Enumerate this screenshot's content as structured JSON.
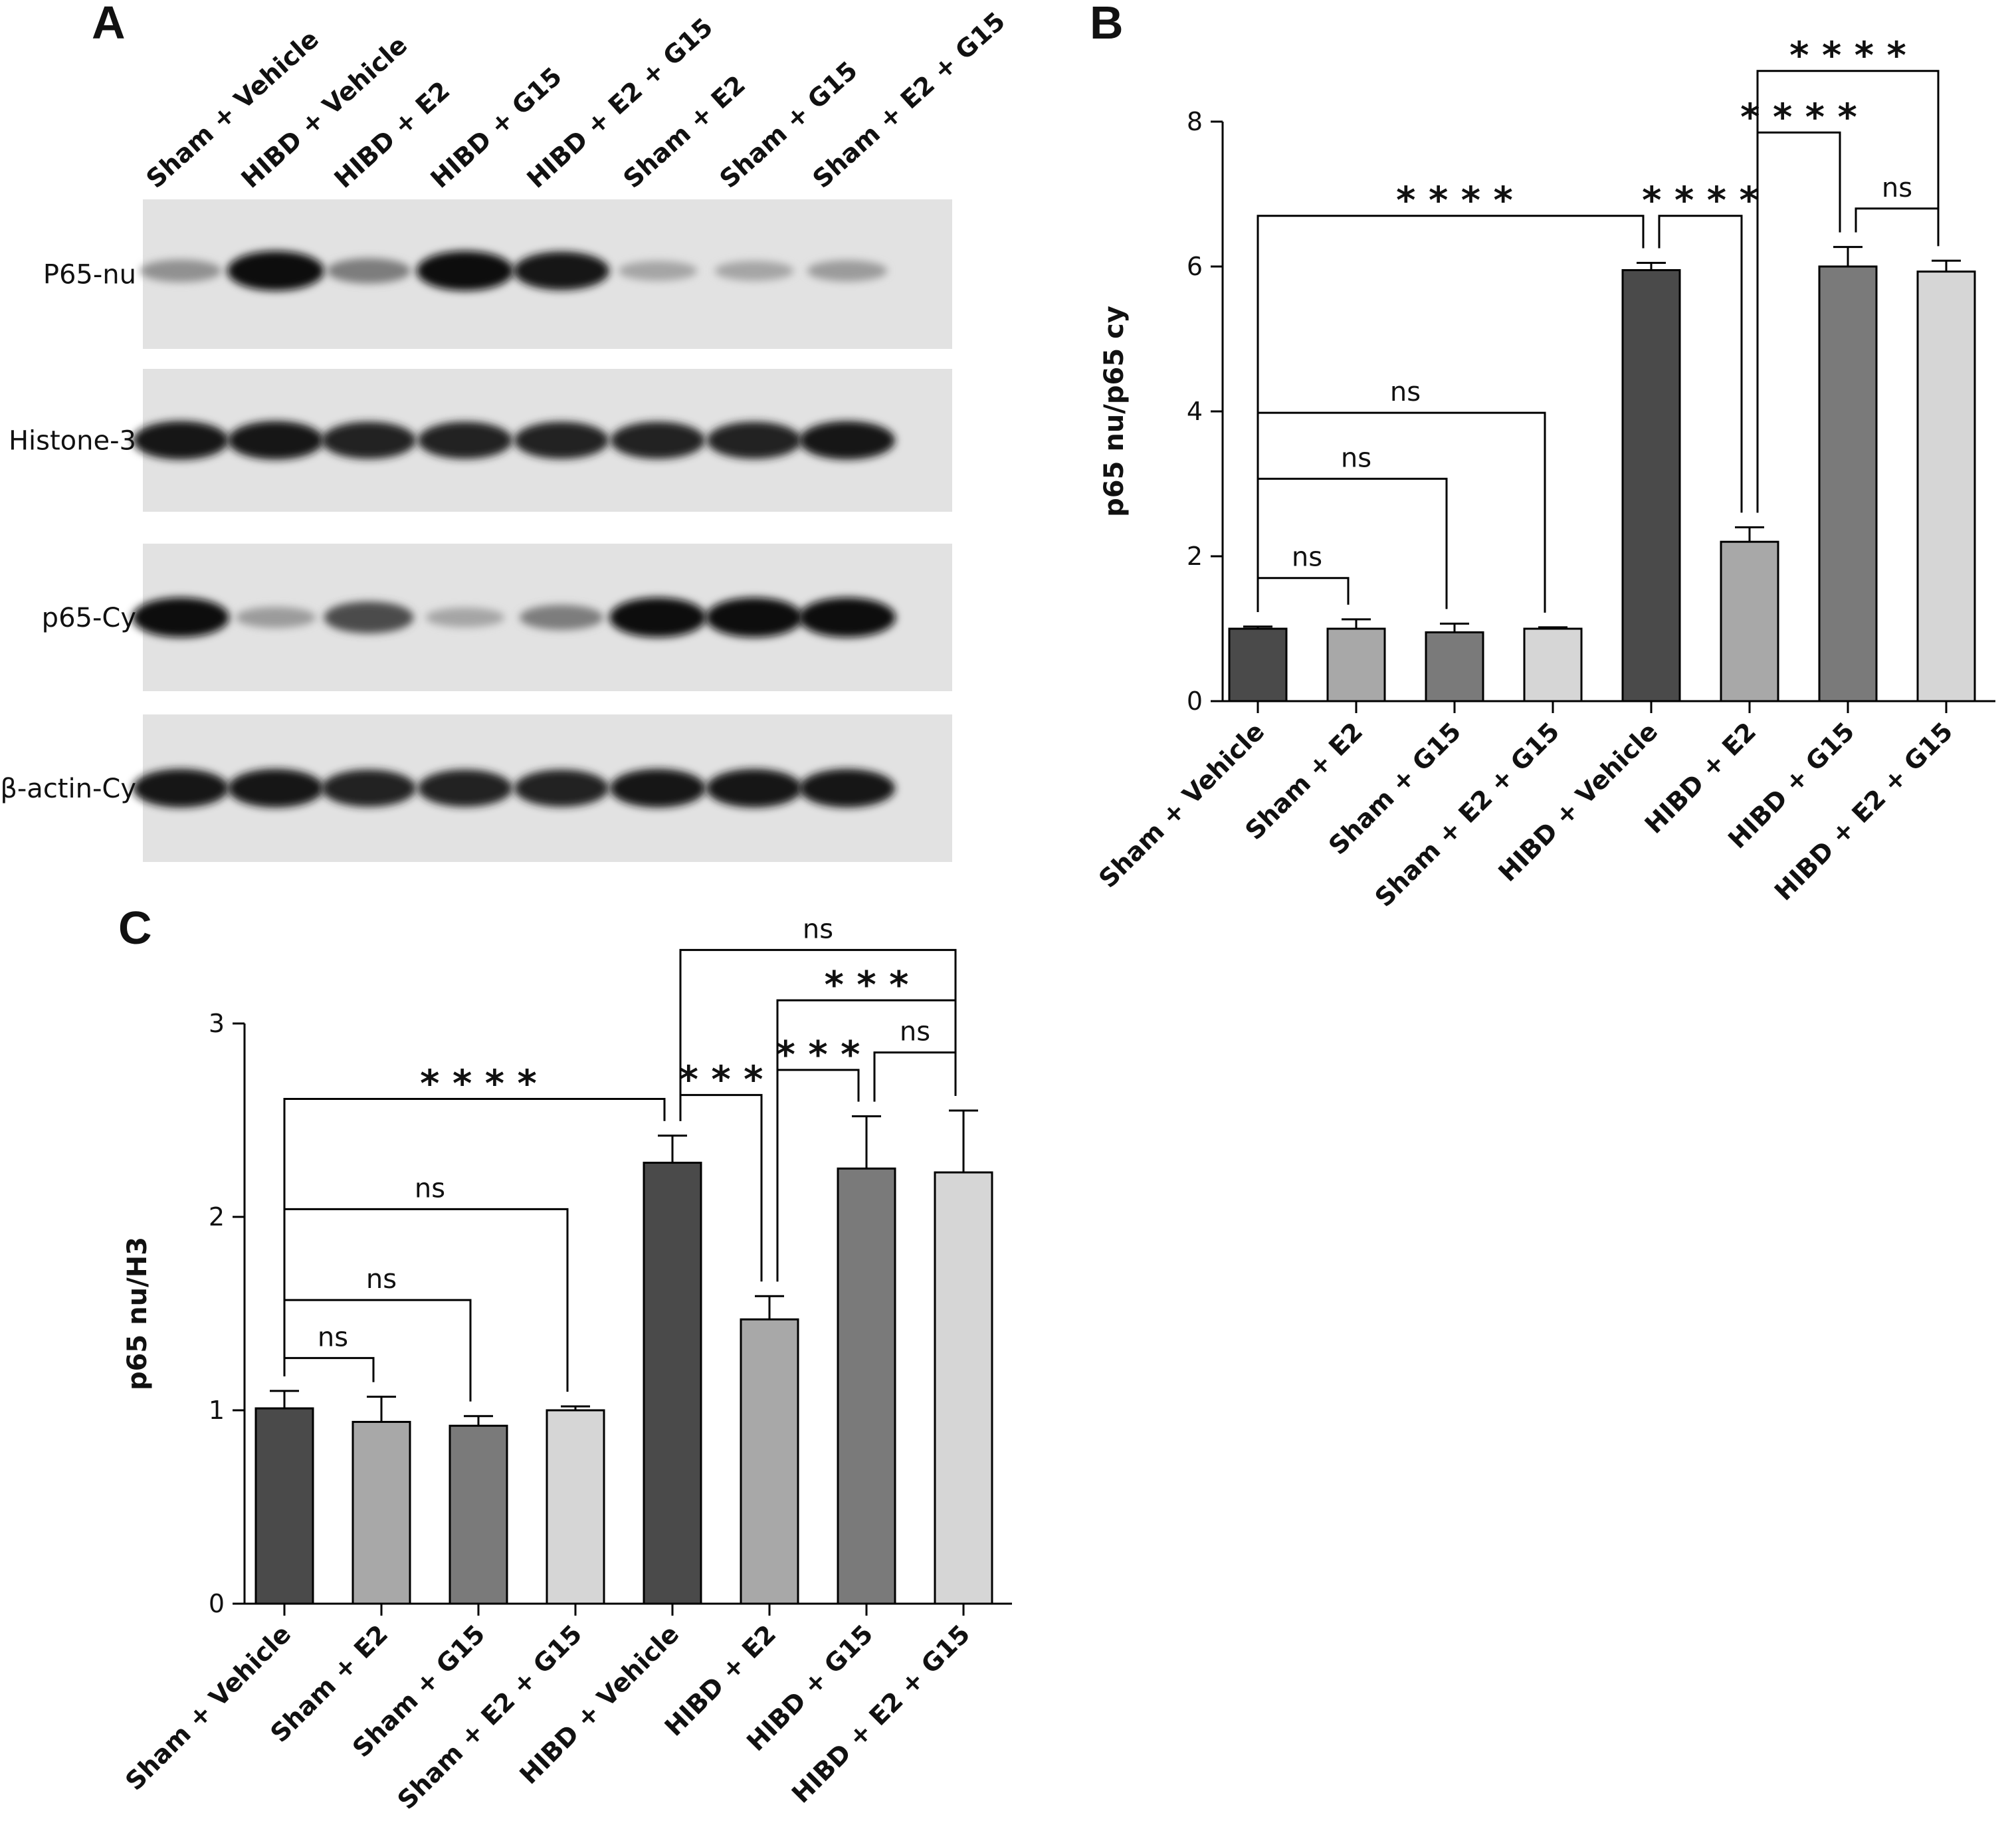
{
  "panels": {
    "a_label": "A",
    "b_label": "B",
    "c_label": "C"
  },
  "blot": {
    "lanes": [
      "Sham + Vehicle",
      "HIBD + Vehicle",
      "HIBD + E2",
      "HIBD + G15",
      "HIBD + E2 + G15",
      "Sham + E2",
      "Sham + G15",
      "Sham + E2 + G15"
    ],
    "rows": [
      {
        "label": "P65-nu",
        "intensity": [
          0.35,
          1.0,
          0.45,
          1.0,
          0.95,
          0.25,
          0.25,
          0.3
        ]
      },
      {
        "label": "Histone-3",
        "intensity": [
          0.95,
          0.95,
          0.9,
          0.9,
          0.9,
          0.9,
          0.9,
          0.95
        ]
      },
      {
        "label": "p65-Cy",
        "intensity": [
          1.0,
          0.3,
          0.7,
          0.25,
          0.45,
          1.0,
          1.0,
          1.0
        ]
      },
      {
        "label": "β-actin-Cy",
        "intensity": [
          0.95,
          0.95,
          0.9,
          0.9,
          0.9,
          0.95,
          0.95,
          0.95
        ]
      }
    ]
  },
  "chart_data": [
    {
      "panel": "B",
      "type": "bar",
      "categories": [
        "Sham + Vehicle",
        "Sham + E2",
        "Sham + G15",
        "Sham + E2 + G15",
        "HIBD + Vehicle",
        "HIBD + E2",
        "HIBD + G15",
        "HIBD + E2 + G15"
      ],
      "values": [
        1.0,
        1.0,
        0.95,
        1.0,
        5.95,
        2.2,
        6.0,
        5.93
      ],
      "errors": [
        0.03,
        0.13,
        0.12,
        0.02,
        0.1,
        0.2,
        0.27,
        0.15
      ],
      "colors": [
        "#4a4a4a",
        "#a8a8a8",
        "#7a7a7a",
        "#d6d6d6",
        "#4a4a4a",
        "#a8a8a8",
        "#7a7a7a",
        "#d6d6d6"
      ],
      "ylabel": "p65 nu/p65 cy",
      "ylim": [
        0,
        8
      ],
      "yticks": [
        "0",
        "2",
        "4",
        "6",
        "8"
      ],
      "comparisons": [
        {
          "from": 0,
          "to": 1,
          "label": "ns",
          "y": 1.7
        },
        {
          "from": 0,
          "to": 2,
          "label": "ns",
          "y": 3.07
        },
        {
          "from": 0,
          "to": 3,
          "label": "ns",
          "y": 3.98
        },
        {
          "from": 0,
          "to": 4,
          "label": "* * * *",
          "y": 6.7
        },
        {
          "from": 4,
          "to": 5,
          "label": "* * * *",
          "y": 6.7
        },
        {
          "from": 5,
          "to": 6,
          "label": "* * * *",
          "y": 7.85
        },
        {
          "from": 5,
          "to": 7,
          "label": "* * * *",
          "y": 8.7
        },
        {
          "from": 6,
          "to": 7,
          "label": "ns",
          "y": 6.8
        }
      ]
    },
    {
      "panel": "C",
      "type": "bar",
      "categories": [
        "Sham + Vehicle",
        "Sham + E2",
        "Sham + G15",
        "Sham + E2 + G15",
        "HIBD + Vehicle",
        "HIBD + E2",
        "HIBD + G15",
        "HIBD + E2 + G15"
      ],
      "values": [
        1.01,
        0.94,
        0.92,
        1.0,
        2.28,
        1.47,
        2.25,
        2.23
      ],
      "errors": [
        0.09,
        0.13,
        0.05,
        0.02,
        0.14,
        0.12,
        0.27,
        0.32
      ],
      "colors": [
        "#4a4a4a",
        "#a8a8a8",
        "#7a7a7a",
        "#d6d6d6",
        "#4a4a4a",
        "#a8a8a8",
        "#7a7a7a",
        "#d6d6d6"
      ],
      "ylabel": "p65 nu/H3",
      "ylim": [
        0,
        3
      ],
      "yticks": [
        "0",
        "1",
        "2",
        "3"
      ],
      "comparisons": [
        {
          "from": 0,
          "to": 1,
          "label": "ns",
          "y": 1.27
        },
        {
          "from": 0,
          "to": 2,
          "label": "ns",
          "y": 1.57
        },
        {
          "from": 0,
          "to": 3,
          "label": "ns",
          "y": 2.04
        },
        {
          "from": 0,
          "to": 4,
          "label": "* * * *",
          "y": 2.61
        },
        {
          "from": 4,
          "to": 5,
          "label": "* * *",
          "y": 2.63
        },
        {
          "from": 5,
          "to": 6,
          "label": "* * *",
          "y": 2.76
        },
        {
          "from": 6,
          "to": 7,
          "label": "ns",
          "y": 2.85
        },
        {
          "from": 5,
          "to": 7,
          "label": "* * *",
          "y": 3.12
        },
        {
          "from": 4,
          "to": 7,
          "label": "ns",
          "y": 3.38
        }
      ]
    }
  ]
}
